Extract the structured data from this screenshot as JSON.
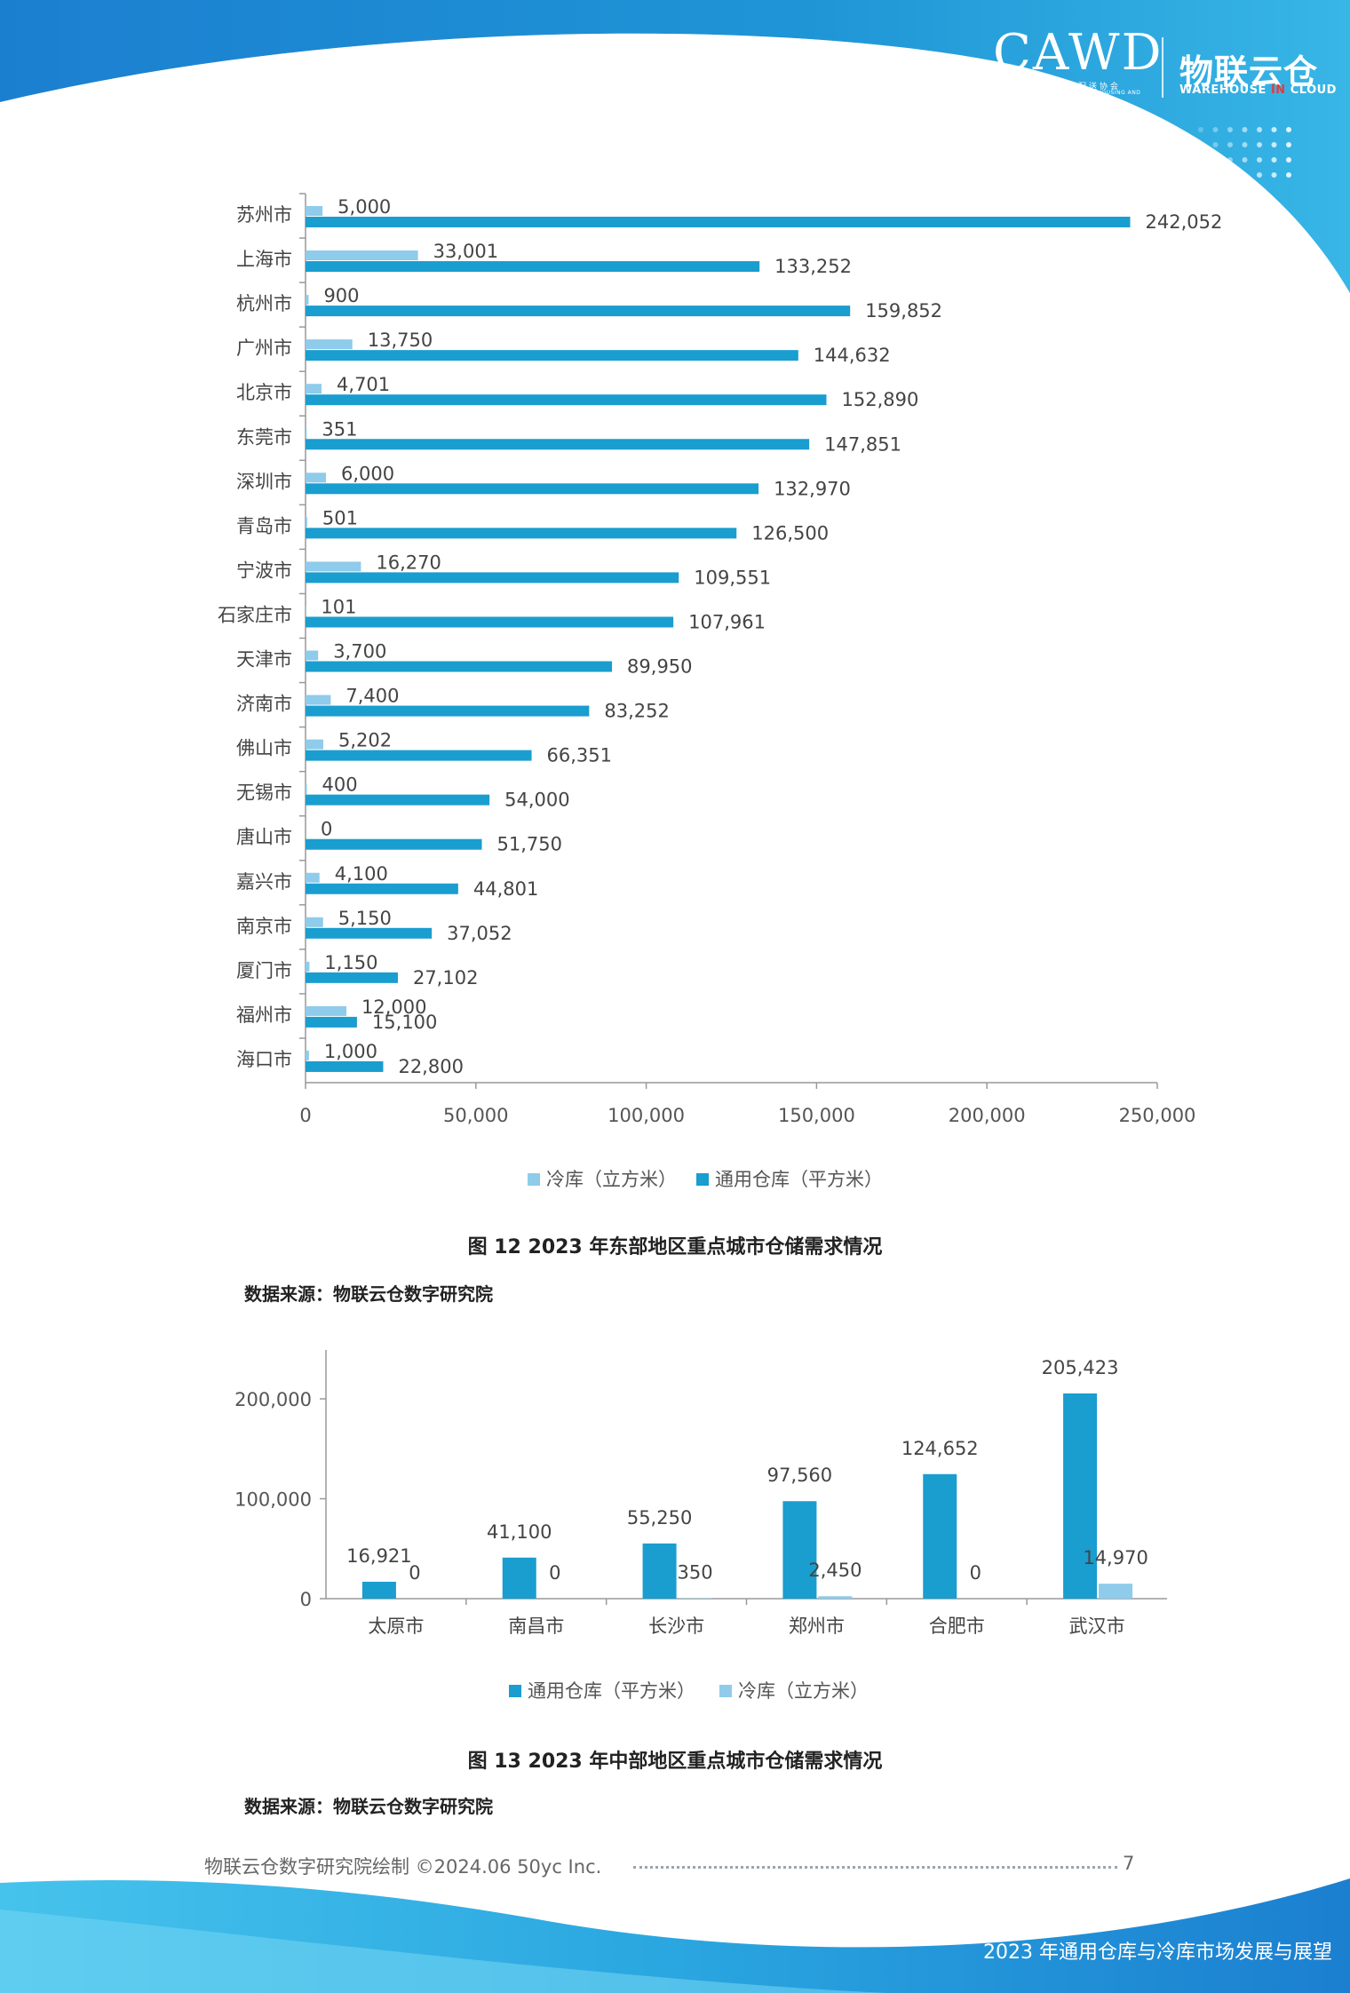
{
  "header": {
    "logo_cawd": "CAWD",
    "logo_cawd_sub_cn": "中国仓储与配送协会",
    "logo_cawd_sub_en": "CHINA ASSOCIATION OF WAREHOUSING AND DISTRIBUTION",
    "logo_wlc": "物联云仓",
    "logo_wlc_sub_a": "WAREHOUSE ",
    "logo_wlc_sub_b": "IN",
    "logo_wlc_sub_c": " CLOUD"
  },
  "colors": {
    "general": "#1a9dcf",
    "cold": "#8fcbea",
    "banner": "#1f95d6"
  },
  "figure12": {
    "caption": "图  12    2023 年东部地区重点城市仓储需求情况",
    "source": "数据来源：物联云仓数字研究院"
  },
  "figure13": {
    "caption": "图  13    2023 年中部地区重点城市仓储需求情况",
    "source": "数据来源：物联云仓数字研究院"
  },
  "chart_data": [
    {
      "type": "bar",
      "orientation": "horizontal",
      "categories": [
        "苏州市",
        "上海市",
        "杭州市",
        "广州市",
        "北京市",
        "东莞市",
        "深圳市",
        "青岛市",
        "宁波市",
        "石家庄市",
        "天津市",
        "济南市",
        "佛山市",
        "无锡市",
        "唐山市",
        "嘉兴市",
        "南京市",
        "厦门市",
        "福州市",
        "海口市"
      ],
      "series": [
        {
          "name": "冷库（立方米）",
          "color": "#8fcbea",
          "values": [
            5000,
            33001,
            900,
            13750,
            4701,
            351,
            6000,
            501,
            16270,
            101,
            3700,
            7400,
            5202,
            400,
            0,
            4100,
            5150,
            1150,
            12000,
            1000
          ],
          "labels": [
            "5,000",
            "33,001",
            "900",
            "13,750",
            "4,701",
            "351",
            "6,000",
            "501",
            "16,270",
            "101",
            "3,700",
            "7,400",
            "5,202",
            "400",
            "0",
            "4,100",
            "5,150",
            "1,150",
            "12,000",
            "1,000"
          ]
        },
        {
          "name": "通用仓库（平方米）",
          "color": "#1a9dcf",
          "values": [
            242052,
            133252,
            159852,
            144632,
            152890,
            147851,
            132970,
            126500,
            109551,
            107961,
            89950,
            83252,
            66351,
            54000,
            51750,
            44801,
            37052,
            27102,
            15100,
            22800
          ],
          "labels": [
            "242,052",
            "133,252",
            "159,852",
            "144,632",
            "152,890",
            "147,851",
            "132,970",
            "126,500",
            "109,551",
            "107,961",
            "89,950",
            "83,252",
            "66,351",
            "54,000",
            "51,750",
            "44,801",
            "37,052",
            "27,102",
            "15,100",
            "22,800"
          ]
        }
      ],
      "xlim": [
        0,
        250000
      ],
      "xticks": [
        "0",
        "50,000",
        "100,000",
        "150,000",
        "200,000",
        "250,000"
      ],
      "legend": "bottom"
    },
    {
      "type": "bar",
      "orientation": "vertical",
      "categories": [
        "太原市",
        "南昌市",
        "长沙市",
        "郑州市",
        "合肥市",
        "武汉市"
      ],
      "series": [
        {
          "name": "通用仓库（平方米）",
          "color": "#1a9dcf",
          "values": [
            16921,
            41100,
            55250,
            97560,
            124652,
            205423
          ],
          "labels": [
            "16,921",
            "41,100",
            "55,250",
            "97,560",
            "124,652",
            "205,423"
          ]
        },
        {
          "name": "冷库（立方米）",
          "color": "#8fcbea",
          "values": [
            0,
            0,
            350,
            2450,
            0,
            14970
          ],
          "labels": [
            "0",
            "0",
            "350",
            "2,450",
            "0",
            "14,970"
          ]
        }
      ],
      "ylim": [
        0,
        250000
      ],
      "yticks": [
        "0",
        "100,000",
        "200,000"
      ],
      "legend": "bottom"
    }
  ],
  "footer": {
    "credit": "物联云仓数字研究院绘制  ©2024.06 50yc Inc.",
    "page": "7",
    "doc_title": "2023 年通用仓库与冷库市场发展与展望"
  }
}
